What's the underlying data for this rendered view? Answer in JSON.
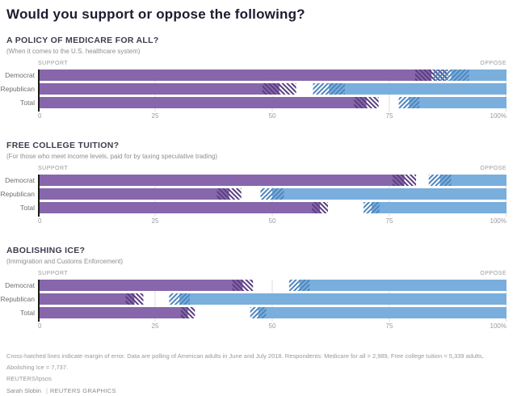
{
  "page": {
    "title": "Would you support or oppose the following?",
    "footnote": "Cross-hatched lines indicate margin of error. Data are polling of American adults in June and July 2018. Respondents: Medicare for all = 2,989, Free college tuition = 5,339 adults, Abolishing Ice = 7,737.",
    "source": "REUTERS/Ipsos",
    "credit_name": "Sarah Slobin",
    "credit_divider": "|",
    "credit_org": "REUTERS GRAPHICS"
  },
  "axis": {
    "support_label": "SUPPORT",
    "oppose_label": "OPPOSE",
    "ticks": [
      {
        "value": 0,
        "label": "0"
      },
      {
        "value": 25,
        "label": "25"
      },
      {
        "value": 50,
        "label": "50"
      },
      {
        "value": 75,
        "label": "75"
      },
      {
        "value": 100,
        "label": "100%"
      }
    ]
  },
  "colors": {
    "support": "#8766ab",
    "oppose": "#7aaedd",
    "support_moe": "#5a3f80",
    "oppose_moe": "#4f86bd",
    "grid": "#dcdcdc",
    "axis_line": "#1a1a1a"
  },
  "chart_data": [
    {
      "type": "bar",
      "title": "A POLICY OF MEDICARE FOR ALL?",
      "subtitle": "(When it comes to the U.S. healthcare system)",
      "categories": [
        "Democrat",
        "Republican",
        "Total"
      ],
      "xlim": [
        0,
        100
      ],
      "unit": "percent of respondents",
      "legend": "hatched area = margin of error",
      "series": [
        {
          "name": "Support",
          "values": [
            84.0,
            51.5,
            70.1
          ],
          "margin_of_error": [
            3.5,
            3.6,
            2.6
          ]
        },
        {
          "name": "Oppose",
          "values": [
            11.8,
            37.9,
            20.8
          ],
          "margin_of_error": [
            3.8,
            3.4,
            2.2
          ]
        }
      ]
    },
    {
      "type": "bar",
      "title": "FREE COLLEGE TUITION?",
      "subtitle": "(For those who meet income levels, paid for by taxing speculative trading)",
      "categories": [
        "Democrat",
        "Republican",
        "Total"
      ],
      "xlim": [
        0,
        100
      ],
      "unit": "percent of respondents",
      "legend": "hatched area = margin of error",
      "series": [
        {
          "name": "Support",
          "values": [
            78.2,
            40.8,
            60.2
          ],
          "margin_of_error": [
            2.5,
            2.6,
            1.7
          ]
        },
        {
          "name": "Oppose",
          "values": [
            14.2,
            50.0,
            28.8
          ],
          "margin_of_error": [
            2.4,
            2.5,
            1.7
          ]
        }
      ]
    },
    {
      "type": "bar",
      "title": "ABOLISHING ICE?",
      "subtitle": "(Immigration and Customs Enforcement)",
      "categories": [
        "Democrat",
        "Republican",
        "Total"
      ],
      "xlim": [
        0,
        100
      ],
      "unit": "percent of respondents",
      "legend": "hatched area = margin of error",
      "series": [
        {
          "name": "Support",
          "values": [
            43.7,
            20.6,
            32.0
          ],
          "margin_of_error": [
            2.2,
            1.9,
            1.5
          ]
        },
        {
          "name": "Oppose",
          "values": [
            44.2,
            69.8,
            53.0
          ],
          "margin_of_error": [
            2.2,
            2.2,
            1.7
          ]
        }
      ]
    }
  ]
}
